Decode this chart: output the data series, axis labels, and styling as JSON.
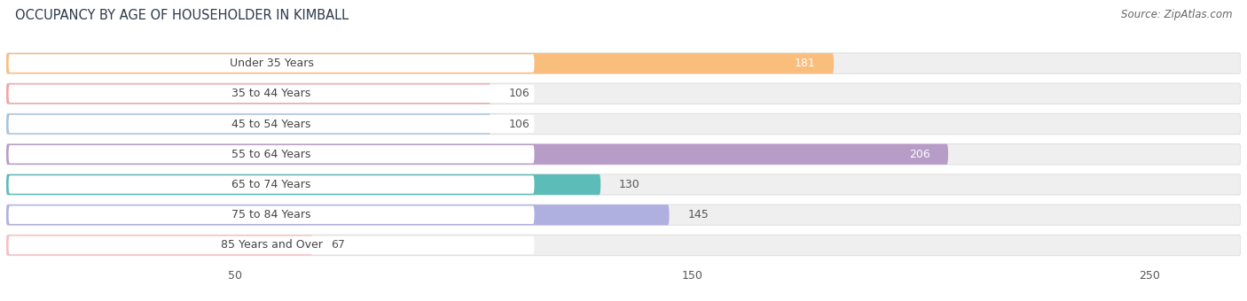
{
  "title": "OCCUPANCY BY AGE OF HOUSEHOLDER IN KIMBALL",
  "source": "Source: ZipAtlas.com",
  "categories": [
    "Under 35 Years",
    "35 to 44 Years",
    "45 to 54 Years",
    "55 to 64 Years",
    "65 to 74 Years",
    "75 to 84 Years",
    "85 Years and Over"
  ],
  "values": [
    181,
    106,
    106,
    206,
    130,
    145,
    67
  ],
  "bar_colors": [
    "#F9BE7C",
    "#F2A5A5",
    "#A8C4E0",
    "#B89CC8",
    "#5BBCB8",
    "#B0B0E0",
    "#F7C0C8"
  ],
  "xlim_max": 270,
  "xticks": [
    50,
    150,
    250
  ],
  "label_inside": [
    true,
    false,
    false,
    true,
    false,
    false,
    false
  ],
  "figsize": [
    14.06,
    3.4
  ],
  "dpi": 100,
  "title_fontsize": 10.5,
  "source_fontsize": 8.5,
  "tick_fontsize": 9,
  "val_label_fontsize": 9,
  "cat_label_fontsize": 9,
  "background_color": "#FFFFFF",
  "bar_bg_color": "#EFEFEF",
  "bar_bg_edge_color": "#E0E0E0",
  "white_capsule_color": "#FFFFFF",
  "cat_label_color": "#444444",
  "val_label_dark": "#555555",
  "val_label_light": "#FFFFFF"
}
